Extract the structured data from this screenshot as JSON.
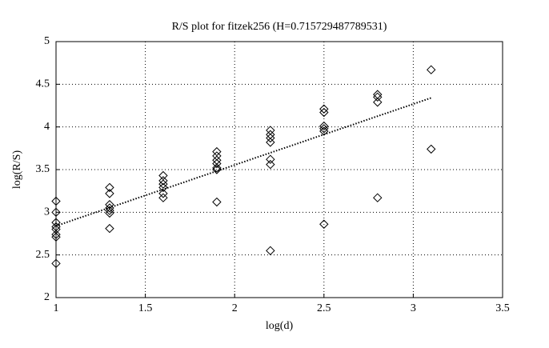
{
  "chart_data": {
    "type": "scatter",
    "title": "R/S plot for fitzek256 (H=0.715729487789531)",
    "x_label": "log(d)",
    "y_label": "log(R/S)",
    "xlim": [
      1,
      3.5
    ],
    "xticks": [
      1,
      1.5,
      2,
      2.5,
      3,
      3.5
    ],
    "ylim": [
      2,
      5
    ],
    "yticks": [
      2,
      2.5,
      3,
      3.5,
      4,
      4.5,
      5
    ],
    "grid": true,
    "series": [
      {
        "color": "#000000",
        "marker": "diamond",
        "x": [
          1,
          1,
          1,
          1,
          1,
          1,
          1,
          1,
          1.3,
          1.3,
          1.3,
          1.3,
          1.3,
          1.3,
          1.3,
          1.6,
          1.6,
          1.6,
          1.6,
          1.6,
          1.6,
          1.9,
          1.9,
          1.9,
          1.9,
          1.9,
          1.9,
          1.9,
          2.2,
          2.2,
          2.2,
          2.2,
          2.2,
          2.2,
          2.2,
          2.5,
          2.5,
          2.5,
          2.5,
          2.5,
          2.5,
          2.8,
          2.8,
          2.8,
          2.8,
          3.1,
          3.1
        ],
        "values": [
          3.13,
          3.0,
          2.88,
          2.83,
          2.8,
          2.74,
          2.71,
          2.4,
          3.29,
          3.22,
          3.09,
          3.05,
          3.02,
          2.99,
          2.81,
          3.43,
          3.37,
          3.33,
          3.29,
          3.22,
          3.17,
          3.71,
          3.66,
          3.61,
          3.57,
          3.52,
          3.5,
          3.12,
          3.96,
          3.91,
          3.87,
          3.82,
          3.62,
          3.56,
          2.55,
          4.21,
          4.17,
          4.01,
          3.98,
          3.95,
          2.86,
          4.38,
          4.35,
          4.29,
          3.17,
          4.67,
          3.74
        ]
      },
      {
        "color": "#000000",
        "line": "dotted",
        "x": [
          1,
          3.1
        ],
        "values": [
          2.84,
          4.34
        ]
      }
    ]
  }
}
